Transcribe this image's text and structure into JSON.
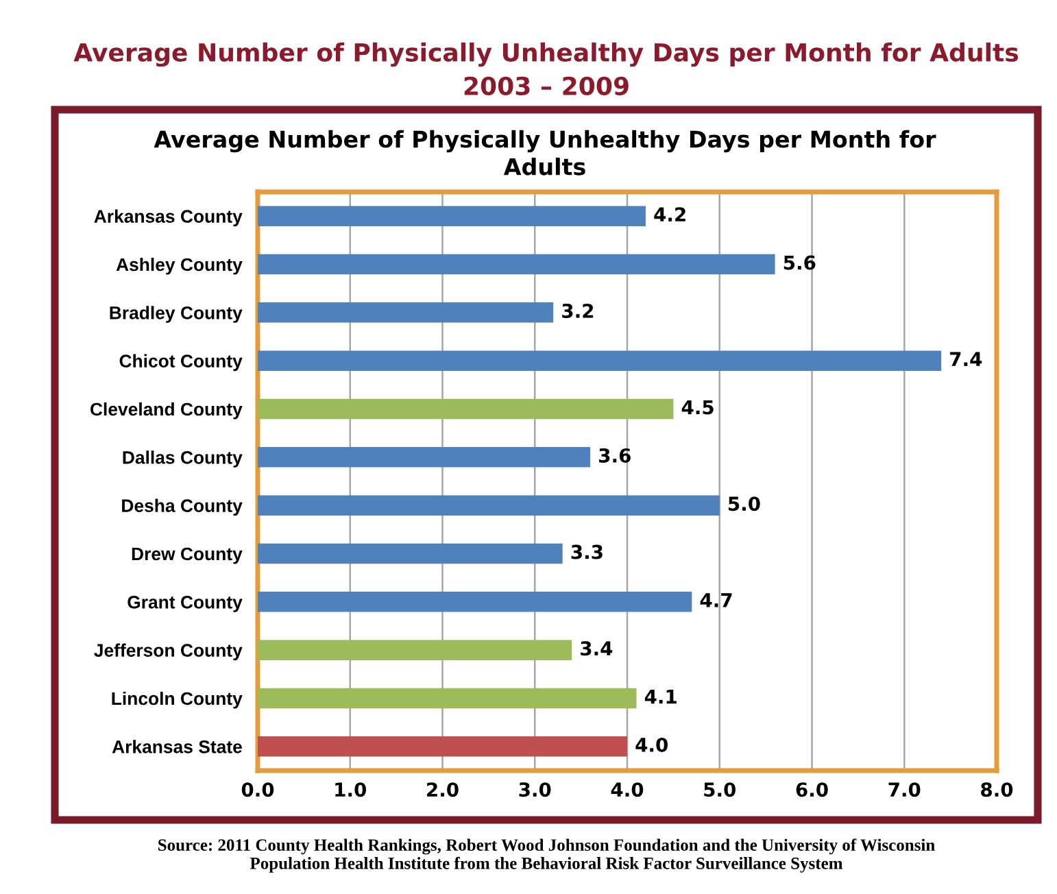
{
  "chart_data": {
    "type": "bar",
    "orientation": "horizontal",
    "title": "Average Number of Physically Unhealthy Days per Month for Adults\n2003 – 2009",
    "subtitle": "Average Number of Physically Unhealthy Days per Month for\nAdults",
    "categories": [
      "Arkansas County",
      "Ashley County",
      "Bradley County",
      "Chicot County",
      "Cleveland County",
      "Dallas County",
      "Desha County",
      "Drew County",
      "Grant County",
      "Jefferson County",
      "Lincoln County",
      "Arkansas State"
    ],
    "values": [
      4.2,
      5.6,
      3.2,
      7.4,
      4.5,
      3.6,
      5.0,
      3.3,
      4.7,
      3.4,
      4.1,
      4.0
    ],
    "value_labels": [
      "4.2",
      "5.6",
      "3.2",
      "7.4",
      "4.5",
      "3.6",
      "5.0",
      "3.3",
      "4.7",
      "3.4",
      "4.1",
      "4.0"
    ],
    "colors": [
      "#4f81bd",
      "#4f81bd",
      "#4f81bd",
      "#4f81bd",
      "#9bbb59",
      "#4f81bd",
      "#4f81bd",
      "#4f81bd",
      "#4f81bd",
      "#9bbb59",
      "#9bbb59",
      "#c0504d"
    ],
    "xlim": [
      0,
      8
    ],
    "xticks": [
      {
        "value": 0,
        "label": "0.0"
      },
      {
        "value": 1,
        "label": "1.0"
      },
      {
        "value": 2,
        "label": "2.0"
      },
      {
        "value": 3,
        "label": "3.0"
      },
      {
        "value": 4,
        "label": "4.0"
      },
      {
        "value": 5,
        "label": "5.0"
      },
      {
        "value": 6,
        "label": "6.0"
      },
      {
        "value": 7,
        "label": "7.0"
      },
      {
        "value": 8,
        "label": "8.0"
      }
    ],
    "grid": "x",
    "annotations": [
      "Source: 2011 County Health Rankings, Robert Wood Johnson Foundation and the University of Wisconsin\nPopulation Health Institute from the Behavioral Risk Factor Surveillance System"
    ]
  }
}
